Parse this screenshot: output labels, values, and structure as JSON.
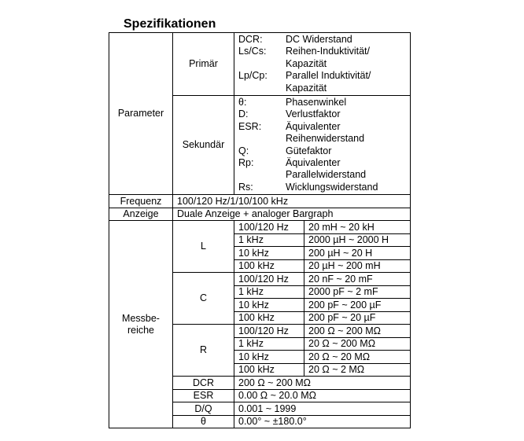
{
  "title": "Spezifikationen",
  "parameter": {
    "label": "Parameter",
    "primary": {
      "label": "Primär",
      "items": [
        {
          "term": "DCR:",
          "desc": [
            "DC Widerstand"
          ]
        },
        {
          "term": "Ls/Cs:",
          "desc": [
            "Reihen-Induktivität/",
            "Kapazität"
          ]
        },
        {
          "term": "Lp/Cp:",
          "desc": [
            "Parallel Induktivität/",
            "Kapazität"
          ]
        }
      ]
    },
    "secondary": {
      "label": "Sekundär",
      "items": [
        {
          "term": "θ:",
          "desc": [
            "Phasenwinkel"
          ]
        },
        {
          "term": "D:",
          "desc": [
            "Verlustfaktor"
          ]
        },
        {
          "term": "ESR:",
          "desc": [
            "Äquivalenter",
            "Reihenwiderstand"
          ]
        },
        {
          "term": "Q:",
          "desc": [
            "Gütefaktor"
          ]
        },
        {
          "term": "Rp:",
          "desc": [
            "Äquivalenter",
            "Parallelwiderstand"
          ]
        },
        {
          "term": "Rs:",
          "desc": [
            "Wicklungswiderstand"
          ]
        }
      ]
    }
  },
  "frequency": {
    "label": "Frequenz",
    "value": "100/120 Hz/1/10/100 kHz"
  },
  "display": {
    "label": "Anzeige",
    "value": "Duale Anzeige + analoger Bargraph"
  },
  "ranges": {
    "label_line1": "Messbe-",
    "label_line2": "reiche",
    "groups": [
      {
        "label": "L",
        "rows": [
          {
            "freq": "100/120 Hz",
            "range": "20 mH ~ 20 kH"
          },
          {
            "freq": "1 kHz",
            "range": "2000 µH ~ 2000 H"
          },
          {
            "freq": "10 kHz",
            "range": "200 µH ~ 20 H"
          },
          {
            "freq": "100 kHz",
            "range": "20 µH ~ 200 mH"
          }
        ]
      },
      {
        "label": "C",
        "rows": [
          {
            "freq": "100/120 Hz",
            "range": "20 nF ~ 20 mF"
          },
          {
            "freq": "1 kHz",
            "range": "2000 pF ~ 2 mF"
          },
          {
            "freq": "10 kHz",
            "range": "200 pF ~ 200 µF"
          },
          {
            "freq": "100 kHz",
            "range": "200 pF ~ 20 µF"
          }
        ]
      },
      {
        "label": "R",
        "rows": [
          {
            "freq": "100/120 Hz",
            "range": "200 Ω ~ 200 MΩ"
          },
          {
            "freq": "1 kHz",
            "range": "20 Ω ~ 200 MΩ"
          },
          {
            "freq": "10 kHz",
            "range": "20 Ω ~ 20 MΩ"
          },
          {
            "freq": "100 kHz",
            "range": "20 Ω ~ 2 MΩ"
          }
        ]
      }
    ],
    "single": [
      {
        "label": "DCR",
        "value": "200 Ω ~ 200 MΩ"
      },
      {
        "label": "ESR",
        "value": "0.00 Ω ~ 20.0 MΩ"
      },
      {
        "label": "D/Q",
        "value": "0.001 ~ 1999"
      },
      {
        "label": "θ",
        "value": "0.00° ~ ±180.0°"
      }
    ]
  }
}
